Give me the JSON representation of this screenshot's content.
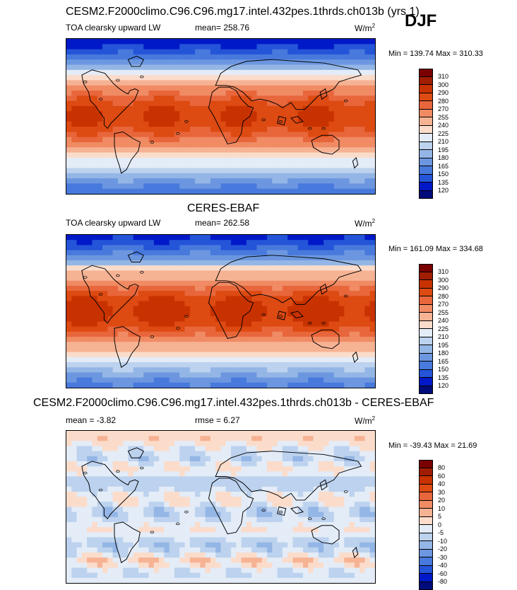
{
  "panels": [
    {
      "title": "CESM2.F2000climo.C96.C96.mg17.intel.432pes.1thrds.ch013b (yrs 1)",
      "variable": "TOA clearsky upward LW",
      "stat": "mean= 258.76",
      "units_base": "W/m",
      "units_exp": "2",
      "minmax": "Min = 139.74 Max = 310.33",
      "scale": "abs",
      "variant": "model",
      "colorbar_labels": [
        "310",
        "300",
        "290",
        "280",
        "270",
        "255",
        "240",
        "225",
        "210",
        "195",
        "180",
        "165",
        "150",
        "135",
        "120"
      ]
    },
    {
      "title": "CERES-EBAF",
      "variable": "TOA clearsky upward LW",
      "stat": "mean= 262.58",
      "units_base": "W/m",
      "units_exp": "2",
      "minmax": "Min = 161.09 Max = 334.68",
      "scale": "abs",
      "variant": "obs",
      "colorbar_labels": [
        "310",
        "300",
        "290",
        "280",
        "270",
        "255",
        "240",
        "225",
        "210",
        "195",
        "180",
        "165",
        "150",
        "135",
        "120"
      ]
    },
    {
      "title": "CESM2.F2000climo.C96.C96.mg17.intel.432pes.1thrds.ch013b - CERES-EBAF",
      "variable": "",
      "stat": "mean =  -3.82",
      "rmse": "rmse =  6.27",
      "units_base": "W/m",
      "units_exp": "2",
      "minmax": "Min = -39.43 Max =  21.69",
      "scale": "diff",
      "variant": "diff",
      "colorbar_labels": [
        "80",
        "60",
        "40",
        "30",
        "20",
        "10",
        "5",
        "0",
        "-5",
        "-10",
        "-20",
        "-30",
        "-40",
        "-60",
        "-80"
      ]
    }
  ],
  "season": "DJF",
  "colors": {
    "abs": [
      "#7a0000",
      "#a01d00",
      "#c83200",
      "#dd4a12",
      "#e8663b",
      "#f08b64",
      "#f6b394",
      "#fbdccb",
      "#e3ecf7",
      "#bcd2ee",
      "#94b6e6",
      "#6c97e0",
      "#4879dc",
      "#2454d8",
      "#0019c8",
      "#000c7a"
    ],
    "diff": [
      "#7a0000",
      "#a01d00",
      "#c83200",
      "#dd4a12",
      "#e8663b",
      "#f08b64",
      "#f6b394",
      "#fbdccb",
      "#e3ecf7",
      "#bcd2ee",
      "#94b6e6",
      "#6c97e0",
      "#4879dc",
      "#2454d8",
      "#0019c8",
      "#000c7a"
    ]
  },
  "chart_data": [
    {
      "type": "heatmap",
      "title": "CESM2.F2000climo.C96.C96.mg17.intel.432pes.1thrds.ch013b (yrs 1)",
      "subtitle": "TOA clearsky upward LW",
      "season": "DJF",
      "units": "W/m2",
      "mean": 258.76,
      "min": 139.74,
      "max": 310.33,
      "levels": [
        120,
        135,
        150,
        165,
        180,
        195,
        210,
        225,
        240,
        255,
        270,
        280,
        290,
        300,
        310
      ]
    },
    {
      "type": "heatmap",
      "title": "CERES-EBAF",
      "subtitle": "TOA clearsky upward LW",
      "season": "DJF",
      "units": "W/m2",
      "mean": 262.58,
      "min": 161.09,
      "max": 334.68,
      "levels": [
        120,
        135,
        150,
        165,
        180,
        195,
        210,
        225,
        240,
        255,
        270,
        280,
        290,
        300,
        310
      ]
    },
    {
      "type": "heatmap",
      "title": "CESM2.F2000climo.C96.C96.mg17.intel.432pes.1thrds.ch013b - CERES-EBAF",
      "season": "DJF",
      "units": "W/m2",
      "mean": -3.82,
      "rmse": 6.27,
      "min": -39.43,
      "max": 21.69,
      "levels": [
        -80,
        -60,
        -40,
        -30,
        -20,
        -10,
        -5,
        0,
        5,
        10,
        20,
        30,
        40,
        60,
        80
      ]
    }
  ]
}
